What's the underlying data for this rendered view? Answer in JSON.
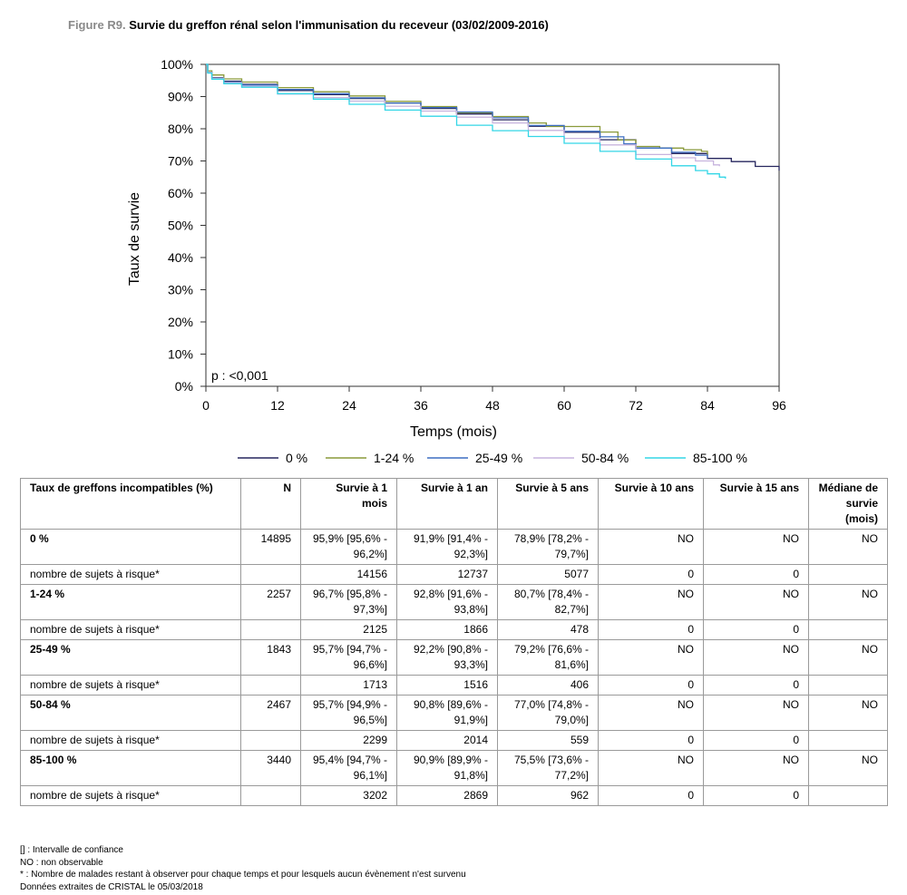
{
  "figure": {
    "number": "Figure R9.",
    "title": "Survie du greffon rénal selon l'immunisation du receveur (03/02/2009-2016)"
  },
  "chart_data": {
    "type": "line",
    "xlabel": "Temps (mois)",
    "ylabel": "Taux de survie",
    "xlim": [
      0,
      96
    ],
    "ylim": [
      0,
      100
    ],
    "x_ticks": [
      0,
      12,
      24,
      36,
      48,
      60,
      72,
      84,
      96
    ],
    "y_ticks": [
      0,
      10,
      20,
      30,
      40,
      50,
      60,
      70,
      80,
      90,
      100
    ],
    "y_tick_labels": [
      "0%",
      "10%",
      "20%",
      "30%",
      "40%",
      "50%",
      "60%",
      "70%",
      "80%",
      "90%",
      "100%"
    ],
    "annotation": "p : <0,001",
    "legend_position": "bottom",
    "grid": false,
    "series": [
      {
        "name": "0 %",
        "color": "#26265e",
        "x": [
          0,
          0.3,
          1,
          3,
          6,
          12,
          18,
          24,
          30,
          36,
          42,
          48,
          54,
          60,
          66,
          72,
          78,
          84,
          88,
          92,
          96
        ],
        "y": [
          100,
          97.5,
          95.9,
          94.8,
          93.8,
          91.9,
          90.6,
          89.4,
          88.0,
          86.3,
          84.6,
          82.8,
          80.8,
          78.9,
          76.6,
          74.0,
          72.3,
          70.8,
          69.8,
          68.3,
          67.0
        ]
      },
      {
        "name": "1-24 %",
        "color": "#8a9a3a",
        "x": [
          0,
          0.3,
          1,
          3,
          6,
          12,
          18,
          24,
          30,
          36,
          42,
          48,
          54,
          57,
          60,
          62,
          66,
          69,
          72,
          76,
          80,
          83,
          84
        ],
        "y": [
          100,
          98.0,
          96.7,
          95.5,
          94.5,
          92.8,
          91.5,
          90.2,
          88.5,
          86.9,
          85.0,
          83.8,
          81.8,
          80.7,
          80.7,
          80.7,
          79.0,
          76.5,
          74.5,
          74.0,
          73.5,
          73.0,
          72.0
        ]
      },
      {
        "name": "25-49 %",
        "color": "#3d6fc2",
        "x": [
          0,
          0.3,
          1,
          3,
          6,
          12,
          18,
          24,
          30,
          36,
          42,
          48,
          54,
          60,
          66,
          70,
          72,
          78,
          82,
          84
        ],
        "y": [
          100,
          97.5,
          95.7,
          94.5,
          93.6,
          92.2,
          90.9,
          89.6,
          88.0,
          86.6,
          85.2,
          83.4,
          81.0,
          79.2,
          77.5,
          75.3,
          74.0,
          72.7,
          71.8,
          70.8
        ]
      },
      {
        "name": "50-84 %",
        "color": "#c7b4de",
        "x": [
          0,
          0.3,
          1,
          3,
          6,
          12,
          18,
          24,
          30,
          36,
          42,
          48,
          54,
          60,
          66,
          72,
          78,
          82,
          85,
          86
        ],
        "y": [
          100,
          97.5,
          95.7,
          94.3,
          93.2,
          90.8,
          89.7,
          88.6,
          87.0,
          85.5,
          83.6,
          81.8,
          79.5,
          77.0,
          75.0,
          72.0,
          71.0,
          70.0,
          68.8,
          68.4
        ]
      },
      {
        "name": "85-100 %",
        "color": "#33d6e6",
        "x": [
          0,
          0.3,
          1,
          3,
          6,
          12,
          18,
          24,
          30,
          36,
          42,
          48,
          54,
          60,
          66,
          72,
          78,
          82,
          84,
          86,
          87
        ],
        "y": [
          100,
          97.3,
          95.4,
          94.0,
          92.9,
          90.9,
          89.2,
          87.6,
          85.8,
          83.9,
          81.1,
          79.4,
          77.6,
          75.5,
          73.0,
          70.6,
          68.5,
          67.0,
          66.0,
          65.0,
          64.5
        ]
      }
    ]
  },
  "table": {
    "headers": [
      "Taux de greffons incompatibles (%)",
      "N",
      "Survie à 1 mois",
      "Survie à 1 an",
      "Survie à 5 ans",
      "Survie à 10 ans",
      "Survie à 15 ans",
      "Médiane de survie (mois)"
    ],
    "groups": [
      {
        "label": "0 %",
        "n": "14895",
        "m1": "95,9% [95,6% - 96,2%]",
        "y1": "91,9% [91,4% - 92,3%]",
        "y5": "78,9% [78,2% - 79,7%]",
        "y10": "NO",
        "y15": "NO",
        "median": "NO",
        "risk_label": "nombre de sujets à risque*",
        "risk": [
          "14156",
          "12737",
          "5077",
          "0",
          "0"
        ]
      },
      {
        "label": "1-24 %",
        "n": "2257",
        "m1": "96,7% [95,8% - 97,3%]",
        "y1": "92,8% [91,6% - 93,8%]",
        "y5": "80,7% [78,4% - 82,7%]",
        "y10": "NO",
        "y15": "NO",
        "median": "NO",
        "risk_label": "nombre de sujets à risque*",
        "risk": [
          "2125",
          "1866",
          "478",
          "0",
          "0"
        ]
      },
      {
        "label": "25-49 %",
        "n": "1843",
        "m1": "95,7% [94,7% - 96,6%]",
        "y1": "92,2% [90,8% - 93,3%]",
        "y5": "79,2% [76,6% - 81,6%]",
        "y10": "NO",
        "y15": "NO",
        "median": "NO",
        "risk_label": "nombre de sujets à risque*",
        "risk": [
          "1713",
          "1516",
          "406",
          "0",
          "0"
        ]
      },
      {
        "label": "50-84 %",
        "n": "2467",
        "m1": "95,7% [94,9% - 96,5%]",
        "y1": "90,8% [89,6% - 91,9%]",
        "y5": "77,0% [74,8% - 79,0%]",
        "y10": "NO",
        "y15": "NO",
        "median": "NO",
        "risk_label": "nombre de sujets à risque*",
        "risk": [
          "2299",
          "2014",
          "559",
          "0",
          "0"
        ]
      },
      {
        "label": "85-100 %",
        "n": "3440",
        "m1": "95,4% [94,7% - 96,1%]",
        "y1": "90,9% [89,9% - 91,8%]",
        "y5": "75,5% [73,6% - 77,2%]",
        "y10": "NO",
        "y15": "NO",
        "median": "NO",
        "risk_label": "nombre de sujets à risque*",
        "risk": [
          "3202",
          "2869",
          "962",
          "0",
          "0"
        ]
      }
    ]
  },
  "notes": [
    "[] : Intervalle de confiance",
    "NO : non observable",
    "* : Nombre de malades restant à observer pour chaque temps et pour lesquels aucun évènement n'est survenu",
    "Données extraites de CRISTAL le 05/03/2018"
  ]
}
